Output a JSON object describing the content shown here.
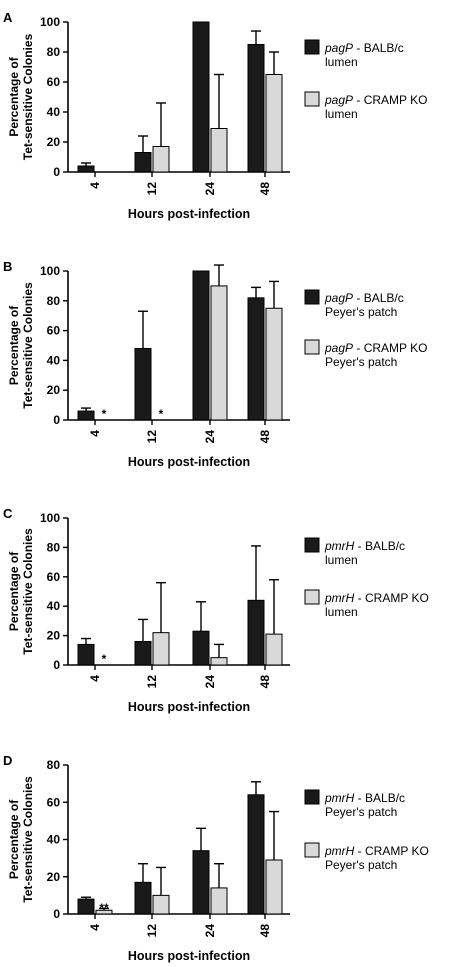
{
  "chart_data": [
    {
      "type": "bar",
      "panel": "A",
      "xlabel": "Hours post-infection",
      "ylabel": [
        "Percentage of",
        "Tet-sensitive Colonies"
      ],
      "ylim": [
        0,
        100
      ],
      "yticks": [
        0,
        20,
        40,
        60,
        80,
        100
      ],
      "categories": [
        "4",
        "12",
        "24",
        "48"
      ],
      "series": [
        {
          "gene": "pagP",
          "name": " - BALB/c",
          "site": "lumen",
          "color": "#1a1a1a",
          "values": [
            4,
            13,
            100,
            85
          ],
          "errors": [
            2,
            11,
            0,
            9
          ]
        },
        {
          "gene": "pagP",
          "name": " - CRAMP KO",
          "site": "lumen",
          "color": "#d9d9d9",
          "values": [
            0,
            17,
            29,
            65
          ],
          "errors": [
            0,
            29,
            36,
            15
          ]
        }
      ],
      "annotations": [
        null,
        null,
        null,
        null
      ]
    },
    {
      "type": "bar",
      "panel": "B",
      "xlabel": "Hours post-infection",
      "ylabel": [
        "Percentage of",
        "Tet-sensitive Colonies"
      ],
      "ylim": [
        0,
        100
      ],
      "yticks": [
        0,
        20,
        40,
        60,
        80,
        100
      ],
      "categories": [
        "4",
        "12",
        "24",
        "48"
      ],
      "series": [
        {
          "gene": "pagP",
          "name": " - BALB/c",
          "site": "Peyer's patch",
          "color": "#1a1a1a",
          "values": [
            6,
            48,
            100,
            82
          ],
          "errors": [
            2,
            25,
            0,
            7
          ]
        },
        {
          "gene": "pagP",
          "name": " - CRAMP KO",
          "site": "Peyer's patch",
          "color": "#d9d9d9",
          "values": [
            0,
            0,
            90,
            75
          ],
          "errors": [
            0,
            0,
            14,
            18
          ]
        }
      ],
      "annotations": [
        "*",
        "*",
        null,
        null
      ]
    },
    {
      "type": "bar",
      "panel": "C",
      "xlabel": "Hours post-infection",
      "ylabel": [
        "Percentage of",
        "Tet-sensitive Colonies"
      ],
      "ylim": [
        0,
        100
      ],
      "yticks": [
        0,
        20,
        40,
        60,
        80,
        100
      ],
      "categories": [
        "4",
        "12",
        "24",
        "48"
      ],
      "series": [
        {
          "gene": "pmrH",
          "name": " - BALB/c",
          "site": "lumen",
          "color": "#1a1a1a",
          "values": [
            14,
            16,
            23,
            44
          ],
          "errors": [
            4,
            15,
            20,
            37
          ]
        },
        {
          "gene": "pmrH",
          "name": " - CRAMP KO",
          "site": "lumen",
          "color": "#d9d9d9",
          "values": [
            0,
            22,
            5,
            21
          ],
          "errors": [
            0,
            34,
            9,
            37
          ]
        }
      ],
      "annotations": [
        "*",
        null,
        null,
        null
      ]
    },
    {
      "type": "bar",
      "panel": "D",
      "xlabel": "Hours post-infection",
      "ylabel": [
        "Percentage of",
        "Tet-sensitive Colonies"
      ],
      "ylim": [
        0,
        80
      ],
      "yticks": [
        0,
        20,
        40,
        60,
        80
      ],
      "categories": [
        "4",
        "12",
        "24",
        "48"
      ],
      "series": [
        {
          "gene": "pmrH",
          "name": " - BALB/c",
          "site": "Peyer's patch",
          "color": "#1a1a1a",
          "values": [
            8,
            17,
            34,
            64
          ],
          "errors": [
            1,
            10,
            12,
            7
          ]
        },
        {
          "gene": "pmrH",
          "name": " - CRAMP KO",
          "site": "Peyer's patch",
          "color": "#d9d9d9",
          "values": [
            2,
            10,
            14,
            29
          ],
          "errors": [
            1,
            15,
            13,
            26
          ]
        }
      ],
      "annotations": [
        "**",
        null,
        null,
        null
      ]
    }
  ]
}
